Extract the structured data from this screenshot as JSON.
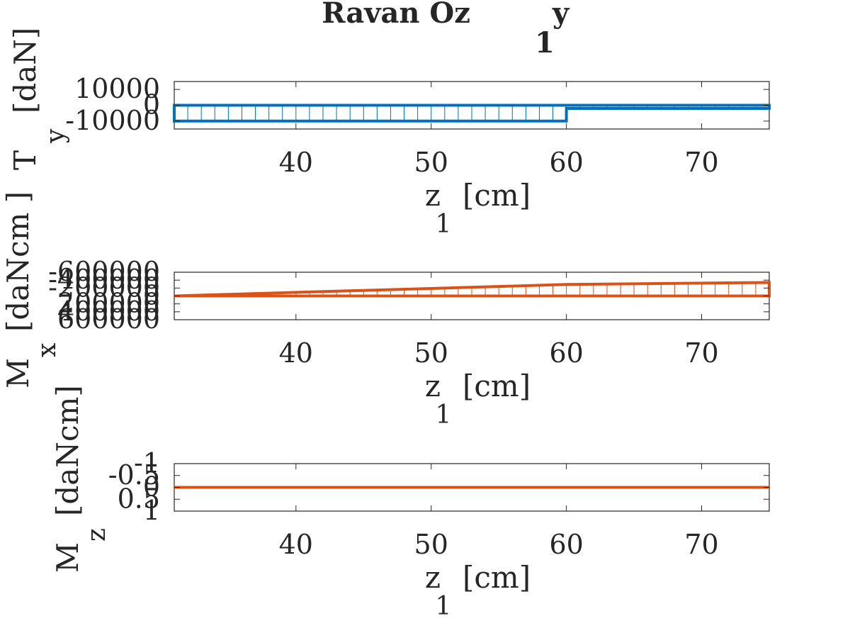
{
  "title": {
    "main": "Ravan Oz",
    "sub_y": "y",
    "sub_1": "1"
  },
  "colors": {
    "blue": "#0072BD",
    "orange": "#D95319",
    "axis": "#262626",
    "text": "#262626"
  },
  "chart_data": [
    {
      "type": "area",
      "series": [
        {
          "x": [
            31,
            60,
            60,
            75
          ],
          "y": [
            -10000,
            -10000,
            -2000,
            -2000
          ]
        }
      ],
      "xlim": [
        31,
        75
      ],
      "ylim": [
        -15000,
        15000
      ],
      "xticks": [
        40,
        50,
        60,
        70
      ],
      "yticks": [
        -10000,
        0,
        10000
      ],
      "xticklabels": [
        "40",
        "50",
        "60",
        "70"
      ],
      "yticklabels": [
        "-10000",
        "0",
        "10000"
      ],
      "ylabel": {
        "main": "T",
        "sub": "y",
        "unit": "[daN]"
      },
      "xlabel": {
        "main": "z",
        "sub": "1",
        "unit": "[cm]"
      },
      "grid": false,
      "ydir": "normal",
      "fill_style": "vertical hatching"
    },
    {
      "type": "area",
      "series": [
        {
          "x": [
            31,
            60,
            75
          ],
          "y": [
            0,
            -290000,
            -340000
          ]
        }
      ],
      "xlim": [
        31,
        75
      ],
      "ylim": [
        -600000,
        600000
      ],
      "xticks": [
        40,
        50,
        60,
        70
      ],
      "yticks": [
        -600000,
        -400000,
        -200000,
        0,
        200000,
        400000,
        600000
      ],
      "xticklabels": [
        "40",
        "50",
        "60",
        "70"
      ],
      "yticklabels": [
        "-600000",
        "-400000",
        "-200000",
        "0",
        "200000",
        "400000",
        "600000"
      ],
      "ylabel": {
        "main": "M",
        "sub": "x",
        "unit": "[daNcm ]"
      },
      "xlabel": {
        "main": "z",
        "sub": "1",
        "unit": "[cm]"
      },
      "grid": false,
      "ydir": "reverse",
      "fill_style": "vertical hatching"
    },
    {
      "type": "line",
      "series": [
        {
          "x": [
            31,
            75
          ],
          "y": [
            0,
            0
          ]
        }
      ],
      "xlim": [
        31,
        75
      ],
      "ylim": [
        -1,
        1
      ],
      "xticks": [
        40,
        50,
        60,
        70
      ],
      "yticks": [
        -1,
        -0.5,
        0,
        0.5,
        1
      ],
      "xticklabels": [
        "40",
        "50",
        "60",
        "70"
      ],
      "yticklabels": [
        "-1",
        "-0.5",
        "0",
        "0.5",
        "1"
      ],
      "ylabel": {
        "main": "M",
        "sub": "z",
        "unit": "[daNcm]"
      },
      "xlabel": {
        "main": "z",
        "sub": "1",
        "unit": "[cm]"
      },
      "grid": false,
      "ydir": "reverse"
    }
  ]
}
